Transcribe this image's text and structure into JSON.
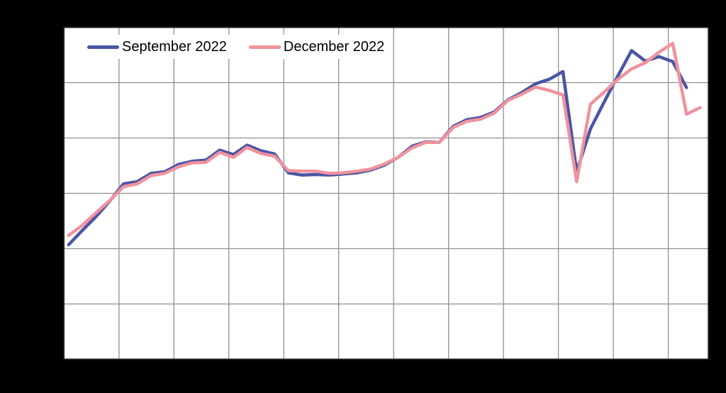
{
  "page": {
    "background_color": "#000000",
    "plot_background_color": "#ffffff",
    "grid_color": "#8f8f8f",
    "border_color": "#1f1f1f"
  },
  "legend": {
    "items": [
      {
        "label": "September 2022",
        "color": "#4a55a4"
      },
      {
        "label": "December 2022",
        "color": "#f0929d"
      }
    ]
  },
  "chart_data": {
    "type": "line",
    "title": "",
    "xlabel": "",
    "ylabel": "",
    "x_description": "evenly spaced points (quarterly-style), index 0-46; axis tick labels are not visible in the image",
    "y_unit": "horizontal-gridline intervals above plot bottom (tick labels not visible in the image)",
    "x_range": [
      -0.35,
      46.6
    ],
    "y_range": [
      0,
      6
    ],
    "x_gridlines": [
      3.67,
      7.67,
      11.67,
      15.67,
      19.67,
      23.67,
      27.67,
      31.67,
      35.67,
      39.67,
      43.67
    ],
    "y_gridlines": [
      1,
      2,
      3,
      4,
      5
    ],
    "grid": true,
    "legend_position": "top-left inside plot",
    "series": [
      {
        "name": "September 2022",
        "color": "#4a55a4",
        "values": [
          2.07,
          2.33,
          2.58,
          2.86,
          3.17,
          3.21,
          3.36,
          3.39,
          3.52,
          3.58,
          3.6,
          3.78,
          3.7,
          3.87,
          3.77,
          3.71,
          3.37,
          3.33,
          3.34,
          3.33,
          3.35,
          3.37,
          3.42,
          3.51,
          3.65,
          3.85,
          3.93,
          3.92,
          4.21,
          4.33,
          4.37,
          4.47,
          4.69,
          4.82,
          4.98,
          5.06,
          5.2,
          3.39,
          4.16,
          4.65,
          5.12,
          5.58,
          5.39,
          5.47,
          5.38,
          4.91
        ]
      },
      {
        "name": "December 2022",
        "color": "#f0929d",
        "values": [
          2.24,
          2.42,
          2.65,
          2.87,
          3.12,
          3.17,
          3.32,
          3.36,
          3.48,
          3.55,
          3.56,
          3.74,
          3.65,
          3.83,
          3.72,
          3.67,
          3.41,
          3.4,
          3.4,
          3.36,
          3.37,
          3.4,
          3.44,
          3.53,
          3.65,
          3.82,
          3.92,
          3.92,
          4.19,
          4.3,
          4.34,
          4.45,
          4.68,
          4.79,
          4.92,
          4.86,
          4.78,
          3.21,
          4.61,
          4.83,
          5.06,
          5.25,
          5.36,
          5.55,
          5.71,
          4.43,
          4.55
        ]
      }
    ]
  }
}
